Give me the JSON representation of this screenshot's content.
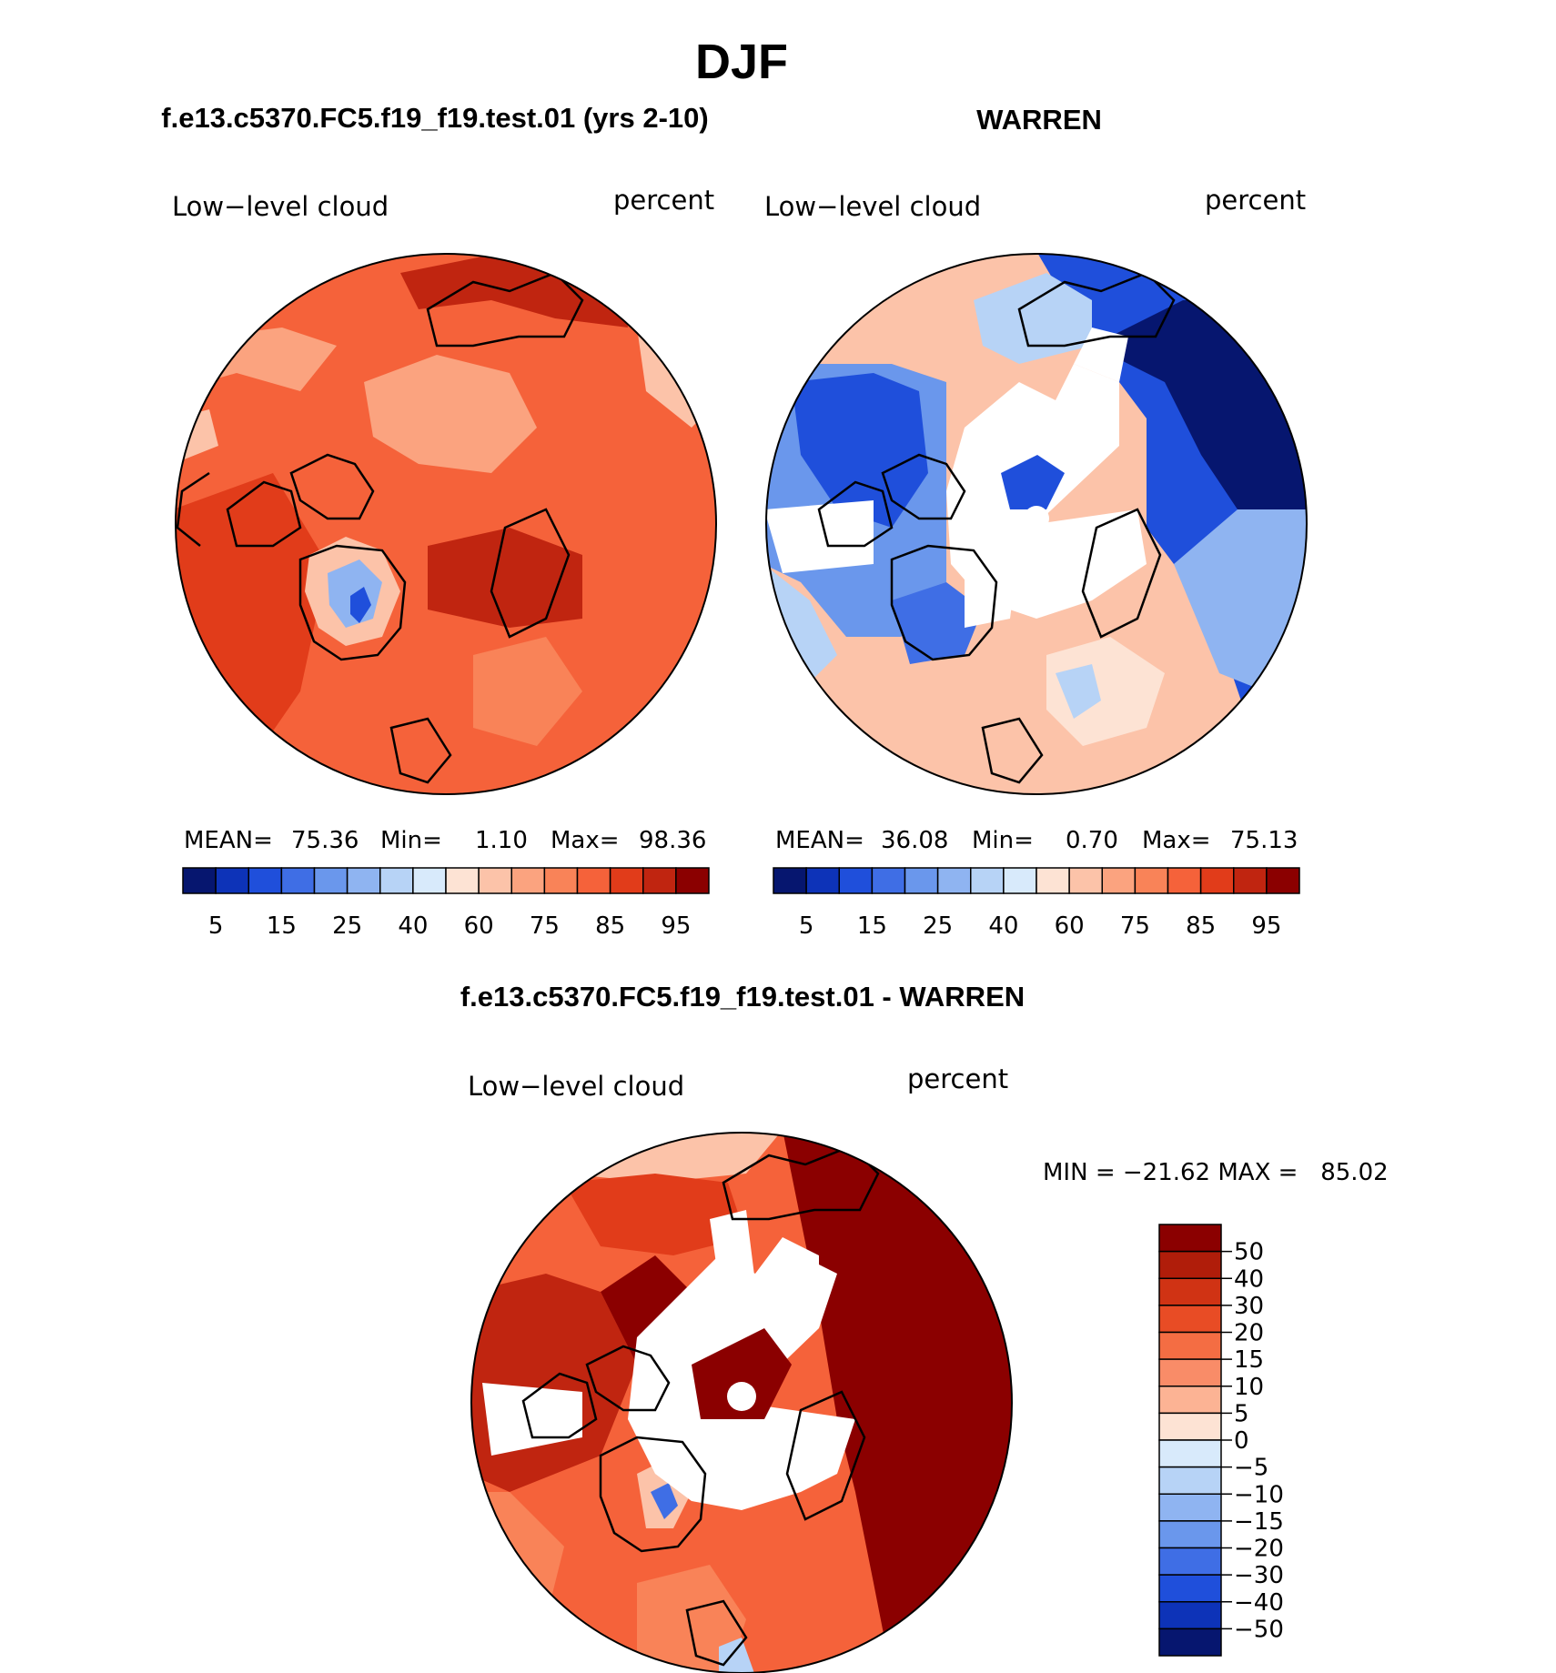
{
  "title": "DJF",
  "colors": {
    "pos": [
      "#fde3d4",
      "#fcc3a9",
      "#fba37f",
      "#f98358",
      "#f5623a",
      "#e13c1a",
      "#c02510",
      "#8b0000"
    ],
    "neg": [
      "#d8eafb",
      "#b7d3f6",
      "#8fb4f1",
      "#6a97ec",
      "#3f6ee5",
      "#1f4fdb",
      "#0d33b8",
      "#06166f"
    ],
    "white": "#ffffff"
  },
  "panels": [
    {
      "id": "model",
      "header": "f.e13.c5370.FC5.f19_f19.test.01 (yrs 2-10)",
      "left_label": "Low−level cloud",
      "right_label": "percent",
      "stats": {
        "mean_label": "MEAN=",
        "mean": "75.36",
        "min_label": "Min=",
        "min": "1.10",
        "max_label": "Max=",
        "max": "98.36"
      },
      "colorbar_ticks": [
        "5",
        "15",
        "25",
        "40",
        "60",
        "75",
        "85",
        "95"
      ],
      "colorbar_colors": [
        "#06166f",
        "#0d33b8",
        "#1f4fdb",
        "#3f6ee5",
        "#6a97ec",
        "#8fb4f1",
        "#b7d3f6",
        "#d8eafb",
        "#fde3d4",
        "#fcc3a9",
        "#fba37f",
        "#f98358",
        "#f5623a",
        "#e13c1a",
        "#c02510",
        "#8b0000"
      ]
    },
    {
      "id": "obs",
      "header": "WARREN",
      "left_label": "Low−level cloud",
      "right_label": "percent",
      "stats": {
        "mean_label": "MEAN=",
        "mean": "36.08",
        "min_label": "Min=",
        "min": "0.70",
        "max_label": "Max=",
        "max": "75.13"
      },
      "colorbar_ticks": [
        "5",
        "15",
        "25",
        "40",
        "60",
        "75",
        "85",
        "95"
      ],
      "colorbar_colors": [
        "#06166f",
        "#0d33b8",
        "#1f4fdb",
        "#3f6ee5",
        "#6a97ec",
        "#8fb4f1",
        "#b7d3f6",
        "#d8eafb",
        "#fde3d4",
        "#fcc3a9",
        "#fba37f",
        "#f98358",
        "#f5623a",
        "#e13c1a",
        "#c02510",
        "#8b0000"
      ]
    },
    {
      "id": "diff",
      "header": "f.e13.c5370.FC5.f19_f19.test.01 - WARREN",
      "left_label": "Low−level cloud",
      "right_label": "percent",
      "stats_text": "MIN = −21.62 MAX =   85.02",
      "colorbar_ticks": [
        "50",
        "40",
        "30",
        "20",
        "15",
        "10",
        "5",
        "0",
        "−5",
        "−10",
        "−15",
        "−20",
        "−30",
        "−40",
        "−50"
      ],
      "colorbar_colors": [
        "#8b0000",
        "#b01d0a",
        "#d03314",
        "#e84c25",
        "#f46d43",
        "#f98c68",
        "#fcb394",
        "#fde3d4",
        "#d8eafb",
        "#b7d3f6",
        "#8fb4f1",
        "#6a97ec",
        "#3f6ee5",
        "#1f4fdb",
        "#0d33b8",
        "#06166f"
      ]
    }
  ],
  "chart_data": [
    {
      "type": "heatmap",
      "title": "f.e13.c5370.FC5.f19_f19.test.01 (yrs 2-10)",
      "variable": "Low-level cloud",
      "units": "percent",
      "season": "DJF",
      "projection": "north polar stereographic",
      "mean": 75.36,
      "min": 1.1,
      "max": 98.36,
      "levels": [
        5,
        10,
        15,
        20,
        25,
        30,
        40,
        50,
        60,
        65,
        70,
        75,
        80,
        85,
        90,
        95
      ],
      "level_labels": [
        5,
        15,
        25,
        40,
        60,
        75,
        85,
        95
      ]
    },
    {
      "type": "heatmap",
      "title": "WARREN",
      "variable": "Low-level cloud",
      "units": "percent",
      "season": "DJF",
      "projection": "north polar stereographic",
      "mean": 36.08,
      "min": 0.7,
      "max": 75.13,
      "levels": [
        5,
        10,
        15,
        20,
        25,
        30,
        40,
        50,
        60,
        65,
        70,
        75,
        80,
        85,
        90,
        95
      ],
      "level_labels": [
        5,
        15,
        25,
        40,
        60,
        75,
        85,
        95
      ]
    },
    {
      "type": "heatmap",
      "title": "f.e13.c5370.FC5.f19_f19.test.01 - WARREN",
      "variable": "Low-level cloud",
      "units": "percent",
      "season": "DJF",
      "projection": "north polar stereographic",
      "min": -21.62,
      "max": 85.02,
      "levels": [
        50,
        40,
        30,
        20,
        15,
        10,
        5,
        0,
        -5,
        -10,
        -15,
        -20,
        -30,
        -40,
        -50
      ]
    }
  ]
}
